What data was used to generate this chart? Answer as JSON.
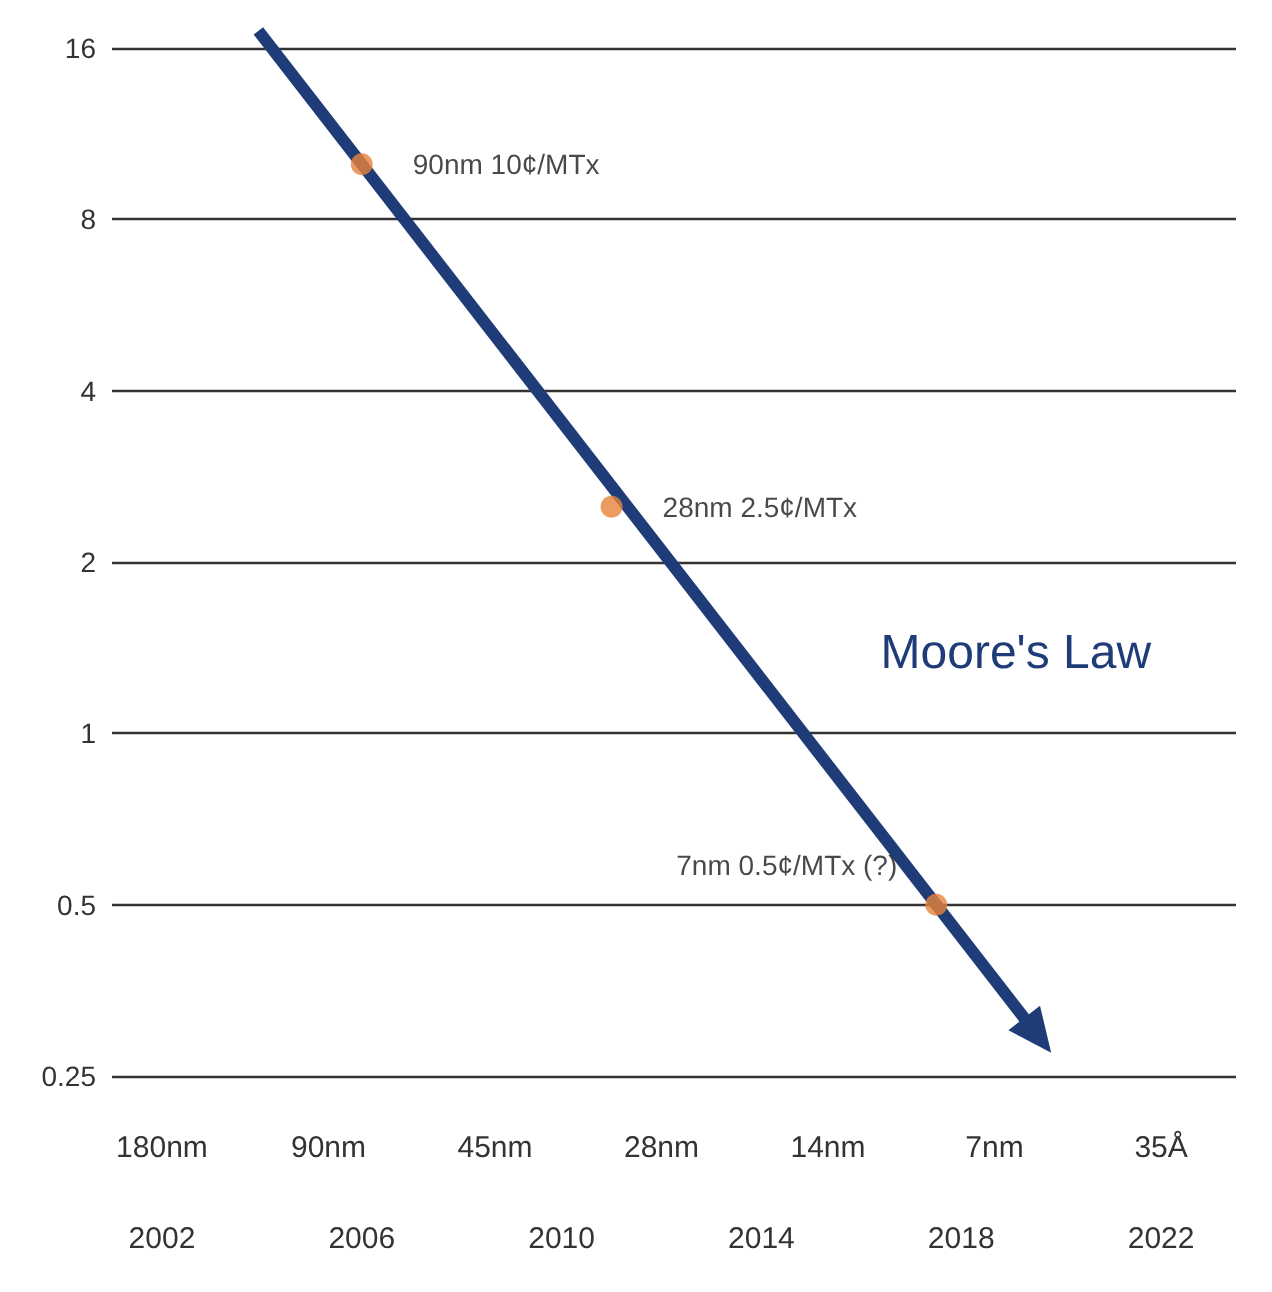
{
  "chart_data": {
    "type": "scatter",
    "xlim": [
      2001,
      2023.5
    ],
    "xticks": [
      2002,
      2006,
      2010,
      2014,
      2018,
      2022
    ],
    "ylim": [
      0.25,
      16
    ],
    "yticks": [
      0.25,
      0.5,
      1,
      2,
      4,
      8,
      16
    ],
    "log": "y",
    "grid": "y",
    "series": [
      {
        "color": "#e8833a",
        "marker": "circle",
        "x": [
          2006,
          2011,
          2017.5
        ],
        "values": [
          10,
          2.5,
          0.5
        ],
        "value_labels": [
          "90nm 10¢/MTx",
          "28nm 2.5¢/MTx",
          "7nm 0.5¢/MTx (?)"
        ]
      }
    ],
    "annotations": [
      "Moore's Law",
      "180nm",
      "90nm",
      "45nm",
      "28nm",
      "14nm",
      "7nm",
      "35Å"
    ]
  }
}
